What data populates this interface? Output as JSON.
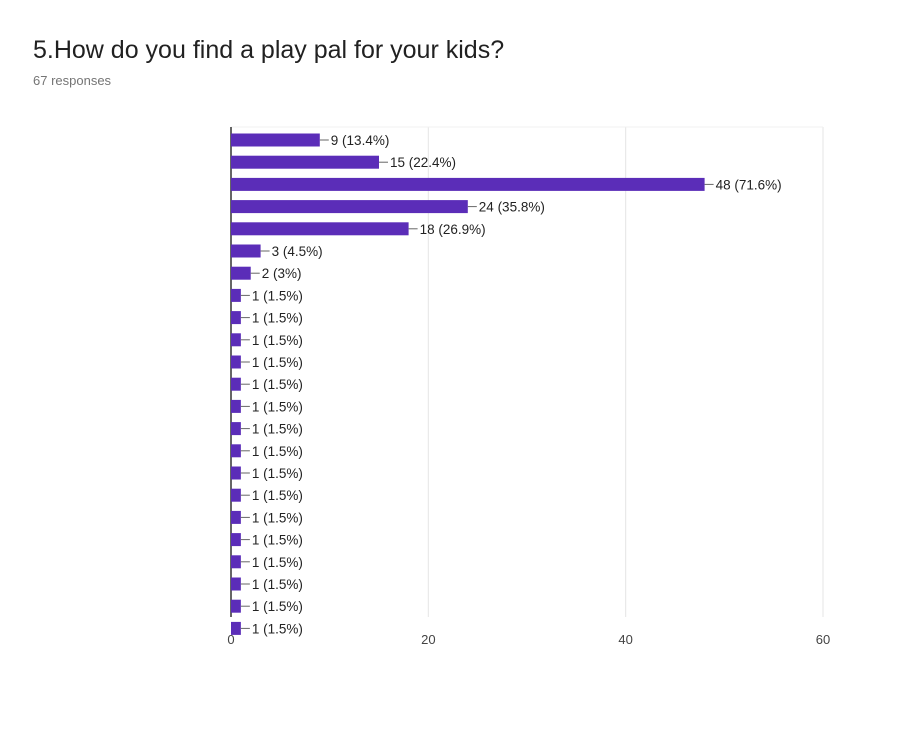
{
  "header": {
    "question": "5.How do you find a play pal for your kids?",
    "responses": "67 responses"
  },
  "colors": {
    "bar": "#5b2db8",
    "grid": "#e5e5e5",
    "axis": "#333333",
    "label": "#222222",
    "tick": "#444444",
    "connector": "#666666"
  },
  "chart_data": {
    "type": "bar",
    "orientation": "horizontal",
    "title": "5.How do you find a play pal for your kids?",
    "subtitle": "67 responses",
    "xlim": [
      0,
      60
    ],
    "x_ticks": [
      0,
      20,
      40,
      60
    ],
    "grid": true,
    "categories": [
      "",
      "",
      "",
      "",
      "",
      "",
      "",
      "",
      "",
      "",
      "",
      "",
      "",
      "",
      "",
      "",
      "",
      "",
      "",
      "",
      "",
      "",
      ""
    ],
    "values": [
      9,
      15,
      48,
      24,
      18,
      3,
      2,
      1,
      1,
      1,
      1,
      1,
      1,
      1,
      1,
      1,
      1,
      1,
      1,
      1,
      1,
      1,
      1
    ],
    "labels": [
      "9 (13.4%)",
      "15 (22.4%)",
      "48 (71.6%)",
      "24 (35.8%)",
      "18 (26.9%)",
      "3 (4.5%)",
      "2 (3%)",
      "1 (1.5%)",
      "1 (1.5%)",
      "1 (1.5%)",
      "1 (1.5%)",
      "1 (1.5%)",
      "1 (1.5%)",
      "1 (1.5%)",
      "1 (1.5%)",
      "1 (1.5%)",
      "1 (1.5%)",
      "1 (1.5%)",
      "1 (1.5%)",
      "1 (1.5%)",
      "1 (1.5%)",
      "1 (1.5%)",
      "1 (1.5%)"
    ]
  }
}
